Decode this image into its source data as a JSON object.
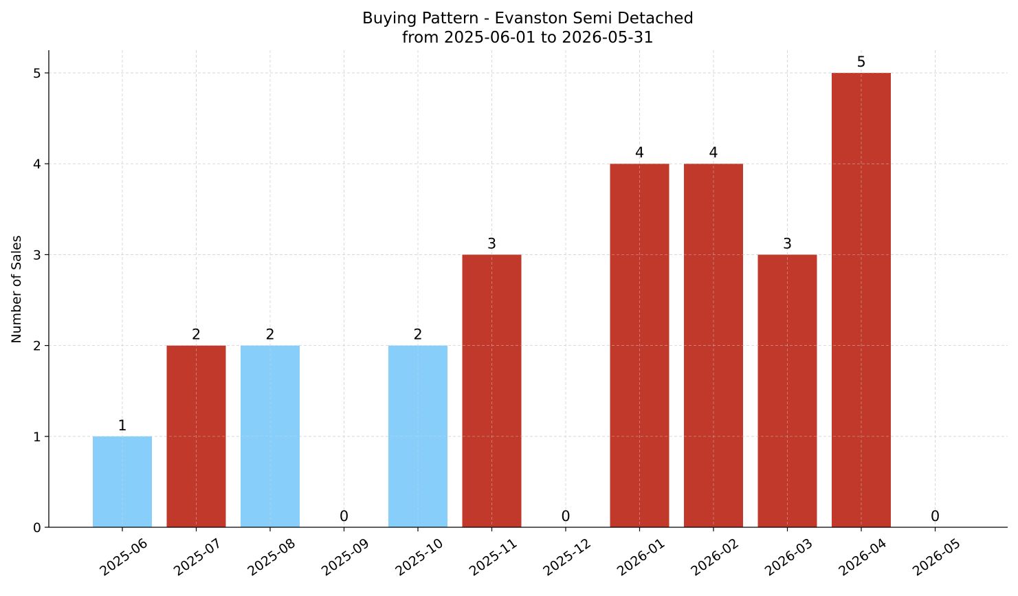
{
  "chart_data": {
    "type": "bar",
    "title": "Buying Pattern - Evanston Semi Detached",
    "subtitle": "from 2025-06-01 to 2026-05-31",
    "xlabel": "",
    "ylabel": "Number of Sales",
    "categories": [
      "2025-06",
      "2025-07",
      "2025-08",
      "2025-09",
      "2025-10",
      "2025-11",
      "2025-12",
      "2026-01",
      "2026-02",
      "2026-03",
      "2026-04",
      "2026-05"
    ],
    "values": [
      1,
      2,
      2,
      0,
      2,
      3,
      0,
      4,
      4,
      3,
      5,
      0
    ],
    "bar_colors": [
      "#87CEFA",
      "#C0392B",
      "#87CEFA",
      "#87CEFA",
      "#87CEFA",
      "#C0392B",
      "#87CEFA",
      "#C0392B",
      "#C0392B",
      "#C0392B",
      "#C0392B",
      "#87CEFA"
    ],
    "ylim": [
      0,
      5.25
    ],
    "yticks": [
      0,
      1,
      2,
      3,
      4,
      5
    ],
    "grid": true,
    "x_tick_rotation": 35
  }
}
